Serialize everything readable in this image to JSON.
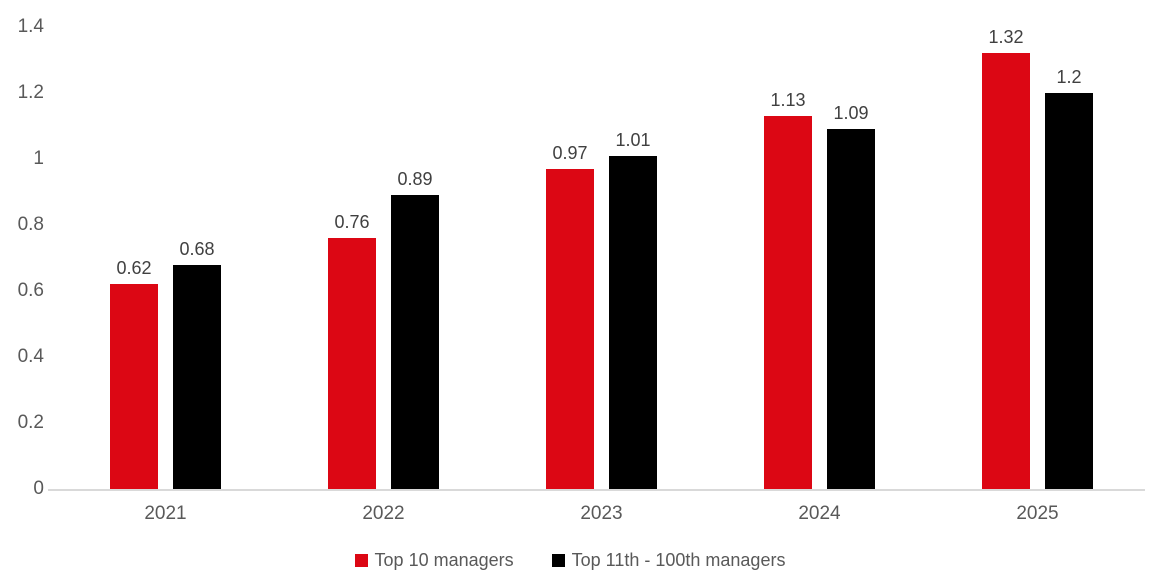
{
  "chart_data": {
    "type": "bar",
    "title": "",
    "xlabel": "",
    "ylabel": "",
    "categories": [
      "2021",
      "2022",
      "2023",
      "2024",
      "2025"
    ],
    "series": [
      {
        "name": "Top 10 managers",
        "color": "#dc0714",
        "values": [
          0.62,
          0.76,
          0.97,
          1.13,
          1.32
        ],
        "labels": [
          "0.62",
          "0.76",
          "0.97",
          "1.13",
          "1.32"
        ]
      },
      {
        "name": "Top 11th - 100th managers",
        "color": "#000000",
        "values": [
          0.68,
          0.89,
          1.01,
          1.09,
          1.2
        ],
        "labels": [
          "0.68",
          "0.89",
          "1.01",
          "1.09",
          "1.2"
        ]
      }
    ],
    "ylim": [
      0,
      1.4
    ],
    "y_ticks": [
      {
        "value": 0,
        "label": "0"
      },
      {
        "value": 0.2,
        "label": "0.2"
      },
      {
        "value": 0.4,
        "label": "0.4"
      },
      {
        "value": 0.6,
        "label": "0.6"
      },
      {
        "value": 0.8,
        "label": "0.8"
      },
      {
        "value": 1,
        "label": "1"
      },
      {
        "value": 1.2,
        "label": "1.2"
      },
      {
        "value": 1.4,
        "label": "1.4"
      }
    ],
    "grid": false,
    "legend_position": "bottom"
  },
  "colors": {
    "axis_line": "#d9d9d9",
    "tick_text": "#595959",
    "data_label_text": "#404040",
    "background": "#ffffff"
  }
}
